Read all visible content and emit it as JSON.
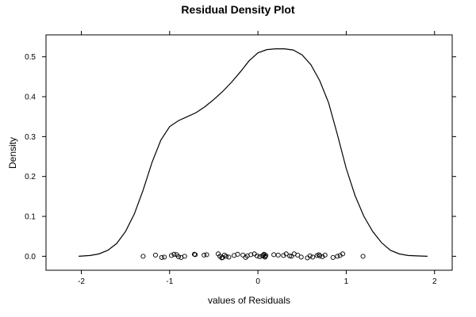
{
  "chart_data": {
    "type": "line",
    "title": "Residual Density Plot",
    "xlabel": "values of Residuals",
    "ylabel": "Density",
    "xlim": [
      -2.4,
      2.2
    ],
    "ylim": [
      -0.035,
      0.555
    ],
    "x_ticks": [
      -2,
      -1,
      0,
      1,
      2
    ],
    "y_ticks": [
      0.0,
      0.1,
      0.2,
      0.3,
      0.4,
      0.5
    ],
    "y_tick_labels": [
      "0.0",
      "0.1",
      "0.2",
      "0.3",
      "0.4",
      "0.5"
    ],
    "grid": false,
    "legend": "none",
    "colors": {
      "line": "#000000",
      "points": "#000000",
      "background": "#ffffff"
    },
    "series": [
      {
        "kind": "line",
        "x": [
          -2.03,
          -1.9,
          -1.8,
          -1.7,
          -1.6,
          -1.5,
          -1.4,
          -1.3,
          -1.2,
          -1.1,
          -1.0,
          -0.9,
          -0.8,
          -0.7,
          -0.6,
          -0.5,
          -0.4,
          -0.3,
          -0.2,
          -0.1,
          0.0,
          0.1,
          0.2,
          0.3,
          0.4,
          0.5,
          0.6,
          0.7,
          0.8,
          0.9,
          1.0,
          1.1,
          1.2,
          1.3,
          1.4,
          1.5,
          1.6,
          1.7,
          1.8,
          1.92
        ],
        "y": [
          0.0,
          0.002,
          0.006,
          0.015,
          0.032,
          0.062,
          0.106,
          0.166,
          0.235,
          0.291,
          0.325,
          0.34,
          0.35,
          0.36,
          0.375,
          0.393,
          0.413,
          0.436,
          0.462,
          0.49,
          0.51,
          0.518,
          0.52,
          0.52,
          0.517,
          0.505,
          0.48,
          0.44,
          0.385,
          0.305,
          0.22,
          0.152,
          0.1,
          0.062,
          0.034,
          0.015,
          0.006,
          0.002,
          0.001,
          0.0
        ]
      },
      {
        "kind": "points",
        "x": [
          -1.3,
          -1.16,
          -1.09,
          -1.06,
          -0.98,
          -0.95,
          -0.92,
          -0.9,
          -0.87,
          -0.83,
          -0.72,
          -0.71,
          -0.61,
          -0.58,
          -0.45,
          -0.43,
          -0.41,
          -0.4,
          -0.38,
          -0.36,
          -0.33,
          -0.27,
          -0.23,
          -0.17,
          -0.14,
          -0.12,
          -0.08,
          -0.04,
          -0.01,
          0.02,
          0.05,
          0.06,
          0.07,
          0.08,
          0.08,
          0.09,
          0.18,
          0.23,
          0.29,
          0.32,
          0.36,
          0.38,
          0.41,
          0.45,
          0.49,
          0.56,
          0.59,
          0.62,
          0.67,
          0.69,
          0.7,
          0.73,
          0.76,
          0.85,
          0.9,
          0.93,
          0.96,
          1.19
        ],
        "y": [
          0.0,
          0.003,
          -0.003,
          -0.002,
          0.002,
          0.005,
          0.004,
          -0.001,
          -0.003,
          0.0,
          0.005,
          0.004,
          0.003,
          0.004,
          0.006,
          0.0,
          -0.004,
          -0.003,
          0.003,
          0.0,
          -0.002,
          0.002,
          0.005,
          0.003,
          -0.003,
          0.001,
          0.004,
          0.006,
          0.001,
          -0.001,
          0.001,
          0.003,
          0.005,
          -0.002,
          0.0,
          0.002,
          0.004,
          0.003,
          0.002,
          0.006,
          0.001,
          0.0,
          0.006,
          0.003,
          -0.002,
          -0.004,
          0.001,
          -0.002,
          0.002,
          0.004,
          0.001,
          -0.001,
          0.003,
          -0.003,
          0.0,
          0.002,
          0.006,
          0.0
        ]
      }
    ]
  }
}
